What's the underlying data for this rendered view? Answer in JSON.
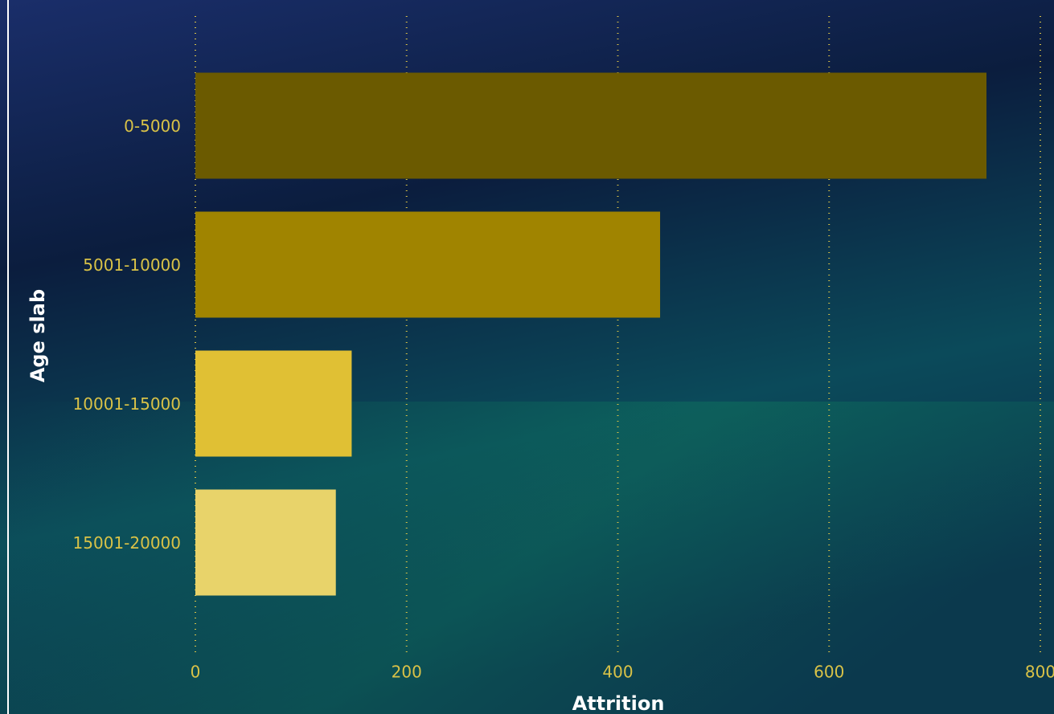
{
  "chart_data": {
    "type": "hbar",
    "categories": [
      "0-5000",
      "5001-10000",
      "10001-15000",
      "15001-20000"
    ],
    "values": [
      749,
      440,
      148,
      133
    ],
    "colors": [
      "#6b5a00",
      "#a08400",
      "#e0c034",
      "#e8d36a"
    ],
    "xlim": [
      0,
      800
    ],
    "xticks": [
      0,
      200,
      400,
      600,
      800
    ],
    "xlabel": "Attrition",
    "ylabel": "Age slab",
    "grid": true
  }
}
